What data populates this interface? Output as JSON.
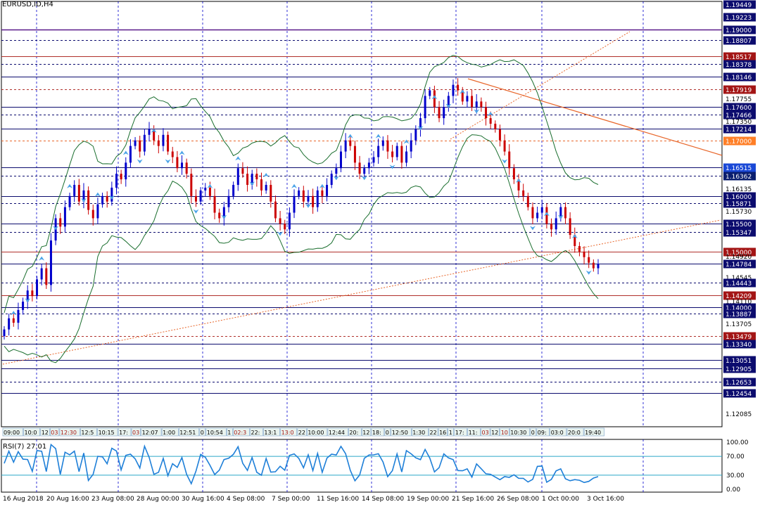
{
  "window": {
    "symbol_title": "EURUSD,ID,H4"
  },
  "colors": {
    "candle_up": "#0000cc",
    "candle_down": "#cc0000",
    "bollinger": "#1a6e2e",
    "grid": "#0000cc",
    "level_blue": "#0c0c6e",
    "level_red": "#b0302b",
    "trend_orange": "#e8662a",
    "fractal": "#4aa3e8",
    "rsi_line": "#1e7fd8",
    "rsi_level": "#2aa8c8",
    "label_navy_bg": "#0c0c6e",
    "label_red_bg": "#a31515",
    "label_orange_bg": "#ff7f27",
    "label_blue_bg": "#1a48d6",
    "label_darkblue_bg": "#0a1e6e"
  },
  "price_levels": [
    {
      "label": "1.19449",
      "price": 1.19449,
      "style": "label",
      "bg": "navy"
    },
    {
      "label": "1.19223",
      "price": 1.19223,
      "style": "label",
      "bg": "navy"
    },
    {
      "label": "1.19000",
      "price": 1.19,
      "style": "solid",
      "color": "purple",
      "bg": "navy"
    },
    {
      "label": "1.18807",
      "price": 1.18807,
      "style": "dotted",
      "color": "blue",
      "bg": "navy"
    },
    {
      "label": "1.18517",
      "price": 1.18517,
      "style": "solid",
      "color": "red",
      "bg": "red"
    },
    {
      "label": "1.18378",
      "price": 1.18378,
      "style": "dotted",
      "color": "blue",
      "bg": "navy"
    },
    {
      "label": "1.18146",
      "price": 1.18146,
      "style": "solid",
      "color": "blue",
      "bg": "navy"
    },
    {
      "label": "1.17919",
      "price": 1.17919,
      "style": "dotted",
      "color": "red",
      "bg": "red"
    },
    {
      "label": "1.17755",
      "price": 1.17755,
      "style": "none",
      "color": "",
      "bg": "none"
    },
    {
      "label": "1.17600",
      "price": 1.176,
      "style": "solid",
      "color": "blue",
      "bg": "navy"
    },
    {
      "label": "1.17466",
      "price": 1.17466,
      "style": "dotted",
      "color": "blue",
      "bg": "navy"
    },
    {
      "label": "1.17350",
      "price": 1.1735,
      "style": "none",
      "color": "",
      "bg": "none"
    },
    {
      "label": "1.17214",
      "price": 1.17214,
      "style": "solid",
      "color": "blue",
      "bg": "navy"
    },
    {
      "label": "1.17000",
      "price": 1.17,
      "style": "dotted",
      "color": "orange",
      "bg": "orange"
    },
    {
      "label": "1.16515",
      "price": 1.16515,
      "style": "solid",
      "color": "blue",
      "bg": "blue"
    },
    {
      "label": "1.16362",
      "price": 1.16362,
      "style": "dotted",
      "color": "blue",
      "bg": "darkblue"
    },
    {
      "label": "1.16135",
      "price": 1.16135,
      "style": "none",
      "color": "",
      "bg": "none"
    },
    {
      "label": "1.16000",
      "price": 1.16,
      "style": "solid",
      "color": "blue",
      "bg": "navy"
    },
    {
      "label": "1.15871",
      "price": 1.15871,
      "style": "dotted",
      "color": "blue",
      "bg": "navy"
    },
    {
      "label": "1.15730",
      "price": 1.1573,
      "style": "none",
      "color": "",
      "bg": "none"
    },
    {
      "label": "1.15500",
      "price": 1.155,
      "style": "solid",
      "color": "blue",
      "bg": "navy"
    },
    {
      "label": "1.15347",
      "price": 1.15347,
      "style": "dotted",
      "color": "blue",
      "bg": "navy"
    },
    {
      "label": "1.15000",
      "price": 1.15,
      "style": "solid",
      "color": "red",
      "bg": "red"
    },
    {
      "label": "1.14920",
      "price": 1.1492,
      "style": "none",
      "color": "",
      "bg": "none"
    },
    {
      "label": "1.14784",
      "price": 1.14784,
      "style": "solid",
      "color": "blue",
      "bg": "navy"
    },
    {
      "label": "1.14545",
      "price": 1.14545,
      "style": "none",
      "color": "",
      "bg": "none"
    },
    {
      "label": "1.14443",
      "price": 1.14443,
      "style": "dotted",
      "color": "blue",
      "bg": "navy"
    },
    {
      "label": "1.14209",
      "price": 1.14209,
      "style": "solid",
      "color": "red",
      "bg": "red"
    },
    {
      "label": "1.14110",
      "price": 1.1411,
      "style": "none",
      "color": "",
      "bg": "none"
    },
    {
      "label": "1.14000",
      "price": 1.14,
      "style": "solid",
      "color": "blue",
      "bg": "navy"
    },
    {
      "label": "1.13887",
      "price": 1.13887,
      "style": "dotted",
      "color": "blue",
      "bg": "navy"
    },
    {
      "label": "1.13705",
      "price": 1.13705,
      "style": "none",
      "color": "",
      "bg": "none"
    },
    {
      "label": "1.13479",
      "price": 1.13479,
      "style": "dotted",
      "color": "red",
      "bg": "red"
    },
    {
      "label": "1.13340",
      "price": 1.1334,
      "style": "solid",
      "color": "blue",
      "bg": "navy"
    },
    {
      "label": "1.13051",
      "price": 1.13051,
      "style": "solid",
      "color": "blue",
      "bg": "navy"
    },
    {
      "label": "1.12905",
      "price": 1.12905,
      "style": "solid",
      "color": "blue",
      "bg": "navy"
    },
    {
      "label": "1.12653",
      "price": 1.12653,
      "style": "dotted",
      "color": "blue",
      "bg": "navy"
    },
    {
      "label": "1.12454",
      "price": 1.12454,
      "style": "solid",
      "color": "blue",
      "bg": "navy"
    },
    {
      "label": "1.12085",
      "price": 1.12085,
      "style": "none",
      "color": "",
      "bg": "none"
    }
  ],
  "session_labels": [
    "09:00",
    "10:0",
    "12",
    "03",
    "12:30",
    "12:5",
    "10:15",
    "17:",
    "03",
    "12:07",
    "1:00",
    "12:51",
    "0",
    "10:54",
    "1",
    "02:3",
    "22:",
    "13:1",
    "13:0",
    "22",
    "10:00",
    "12:44",
    "20:",
    "12",
    "18:",
    "0",
    "12:50",
    "1:30",
    "22",
    "16",
    "1",
    "17:",
    "11:",
    "03",
    "12",
    "10",
    "10:30",
    "0",
    "09:",
    "03:0",
    "20:0",
    "19:40"
  ],
  "rsi": {
    "label": "RSI(7) 27.01",
    "ticks": [
      "100.00",
      "70.00",
      "30.00",
      "0.00"
    ],
    "levels": [
      70,
      30
    ]
  },
  "chart_data": {
    "type": "candlestick",
    "symbol": "EURUSD",
    "timeframe": "H4",
    "x_tick_labels": [
      "16 Aug 2018",
      "20 Aug 16:00",
      "23 Aug 08:00",
      "28 Aug 00:00",
      "30 Aug 16:00",
      "4 Sep 08:00",
      "7 Sep 00:00",
      "11 Sep 16:00",
      "14 Sep 08:00",
      "19 Sep 00:00",
      "21 Sep 16:00",
      "26 Sep 08:00",
      "1 Oct 00:00",
      "3 Oct 16:00"
    ],
    "y_range": [
      1.1185,
      1.195
    ],
    "close_path": [
      1.136,
      1.138,
      1.1372,
      1.1395,
      1.141,
      1.143,
      1.142,
      1.145,
      1.147,
      1.144,
      1.152,
      1.156,
      1.1545,
      1.158,
      1.16,
      1.162,
      1.159,
      1.161,
      1.1575,
      1.156,
      1.1585,
      1.16,
      1.159,
      1.1615,
      1.164,
      1.163,
      1.166,
      1.169,
      1.17,
      1.168,
      1.171,
      1.172,
      1.17,
      1.169,
      1.171,
      1.168,
      1.167,
      1.165,
      1.166,
      1.164,
      1.16,
      1.159,
      1.161,
      1.1615,
      1.16,
      1.157,
      1.156,
      1.158,
      1.16,
      1.162,
      1.165,
      1.164,
      1.162,
      1.164,
      1.163,
      1.161,
      1.162,
      1.159,
      1.156,
      1.155,
      1.154,
      1.157,
      1.16,
      1.161,
      1.159,
      1.16,
      1.158,
      1.161,
      1.16,
      1.162,
      1.164,
      1.165,
      1.168,
      1.17,
      1.169,
      1.166,
      1.164,
      1.165,
      1.166,
      1.167,
      1.169,
      1.17,
      1.168,
      1.167,
      1.169,
      1.166,
      1.168,
      1.17,
      1.172,
      1.174,
      1.178,
      1.179,
      1.176,
      1.174,
      1.176,
      1.178,
      1.18,
      1.179,
      1.177,
      1.178,
      1.176,
      1.177,
      1.176,
      1.174,
      1.173,
      1.172,
      1.17,
      1.168,
      1.165,
      1.163,
      1.161,
      1.16,
      1.158,
      1.156,
      1.157,
      1.158,
      1.155,
      1.154,
      1.156,
      1.158,
      1.156,
      1.153,
      1.151,
      1.15,
      1.149,
      1.148,
      1.147,
      1.1478
    ],
    "last_close": 1.14784,
    "rsi_last": 27.01
  }
}
